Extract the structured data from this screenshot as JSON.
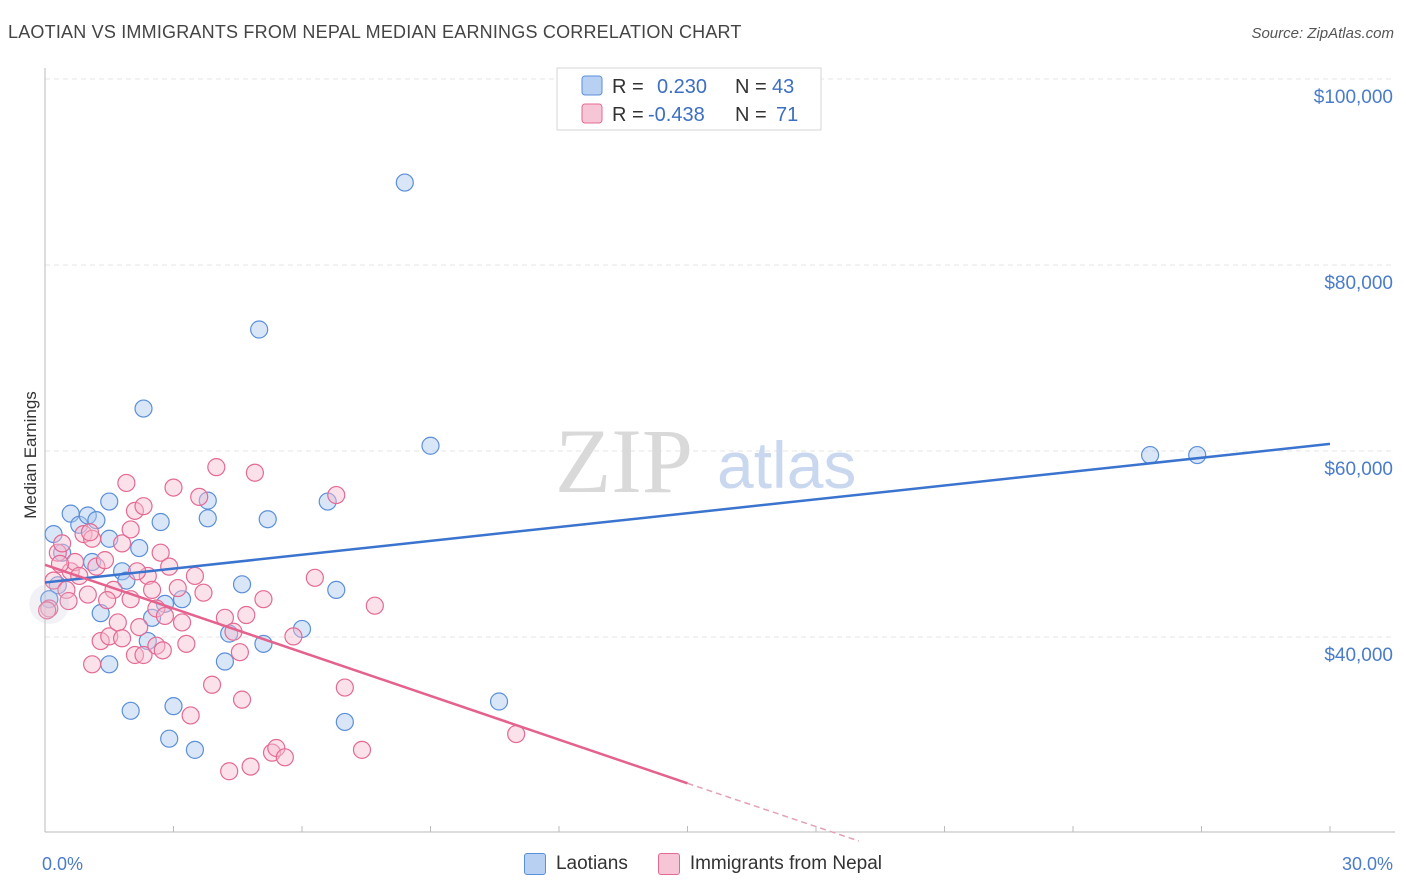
{
  "title": "LAOTIAN VS IMMIGRANTS FROM NEPAL MEDIAN EARNINGS CORRELATION CHART",
  "source": "Source: ZipAtlas.com",
  "watermark": {
    "zip": "ZIP",
    "atlas": "atlas"
  },
  "colors": {
    "blue": "#5b8fd9",
    "blue_fill": "#aac8f0",
    "pink": "#e46a93",
    "pink_fill": "#f6bcd0",
    "tick_text": "#4a7cc9"
  },
  "legend": {
    "rows": [
      {
        "r_label": "R = ",
        "r_value": "0.230",
        "n_label": "N = ",
        "n_value": "43"
      },
      {
        "r_label": "R = ",
        "r_value": "-0.438",
        "n_label": "N = ",
        "n_value": "71"
      }
    ]
  },
  "chart_data": {
    "type": "scatter",
    "title": "LAOTIAN VS IMMIGRANTS FROM NEPAL MEDIAN EARNINGS CORRELATION CHART",
    "xlabel": "",
    "ylabel": "Median Earnings",
    "xlim": [
      0,
      30
    ],
    "ylim": [
      20000,
      103000
    ],
    "x_tick_labels": [
      "0.0%",
      "30.0%"
    ],
    "y_ticks": [
      {
        "value": 40000,
        "label": "$40,000"
      },
      {
        "value": 60000,
        "label": "$60,000"
      },
      {
        "value": 80000,
        "label": "$80,000"
      },
      {
        "value": 100000,
        "label": "$100,000"
      }
    ],
    "grid": true,
    "legend_position": "top-center",
    "series": [
      {
        "name": "Laotians",
        "color": "#5b8fd9",
        "r": 0.23,
        "n": 43,
        "trend": {
          "x": [
            0,
            30
          ],
          "y": [
            47800,
            62700
          ]
        },
        "points": [
          [
            0.3,
            47500
          ],
          [
            0.4,
            51000
          ],
          [
            0.6,
            55200
          ],
          [
            0.8,
            54000
          ],
          [
            1.0,
            55000
          ],
          [
            1.1,
            50000
          ],
          [
            1.2,
            54500
          ],
          [
            1.3,
            44500
          ],
          [
            1.5,
            39000
          ],
          [
            1.5,
            52500
          ],
          [
            1.5,
            56500
          ],
          [
            1.8,
            49000
          ],
          [
            1.9,
            48000
          ],
          [
            2.0,
            34000
          ],
          [
            2.2,
            51500
          ],
          [
            2.3,
            66500
          ],
          [
            2.4,
            41500
          ],
          [
            2.5,
            44000
          ],
          [
            2.7,
            54300
          ],
          [
            2.8,
            45500
          ],
          [
            2.9,
            31000
          ],
          [
            3.0,
            34500
          ],
          [
            3.2,
            46000
          ],
          [
            3.5,
            29800
          ],
          [
            3.8,
            56600
          ],
          [
            3.8,
            54700
          ],
          [
            4.2,
            39300
          ],
          [
            4.3,
            42300
          ],
          [
            4.6,
            47600
          ],
          [
            5.0,
            75000
          ],
          [
            5.1,
            41200
          ],
          [
            5.2,
            54600
          ],
          [
            6.0,
            42800
          ],
          [
            6.6,
            56500
          ],
          [
            6.8,
            47000
          ],
          [
            7.0,
            32800
          ],
          [
            8.4,
            90800
          ],
          [
            9.0,
            62500
          ],
          [
            10.6,
            35000
          ],
          [
            25.8,
            61500
          ],
          [
            26.9,
            61500
          ],
          [
            0.1,
            46000
          ],
          [
            0.2,
            53000
          ]
        ]
      },
      {
        "name": "Immigrants from Nepal",
        "color": "#e46a93",
        "r": -0.438,
        "n": 71,
        "trend": {
          "x": [
            0,
            15
          ],
          "y": [
            49700,
            26200
          ]
        },
        "trend_dashed": {
          "x": [
            15,
            19
          ],
          "y": [
            26200,
            20000
          ]
        },
        "points": [
          [
            0.1,
            45000
          ],
          [
            0.2,
            48000
          ],
          [
            0.3,
            51000
          ],
          [
            0.4,
            52000
          ],
          [
            0.5,
            47000
          ],
          [
            0.6,
            49000
          ],
          [
            0.7,
            50000
          ],
          [
            0.8,
            48500
          ],
          [
            0.9,
            53000
          ],
          [
            1.0,
            46500
          ],
          [
            1.1,
            39000
          ],
          [
            1.1,
            52500
          ],
          [
            1.2,
            49500
          ],
          [
            1.3,
            41500
          ],
          [
            1.4,
            50200
          ],
          [
            1.5,
            42000
          ],
          [
            1.6,
            47000
          ],
          [
            1.7,
            43500
          ],
          [
            1.8,
            41800
          ],
          [
            1.8,
            52000
          ],
          [
            1.9,
            58500
          ],
          [
            2.0,
            53500
          ],
          [
            2.0,
            46000
          ],
          [
            2.1,
            40000
          ],
          [
            2.1,
            55500
          ],
          [
            2.2,
            43000
          ],
          [
            2.3,
            40000
          ],
          [
            2.3,
            56000
          ],
          [
            2.4,
            48500
          ],
          [
            2.5,
            47000
          ],
          [
            2.6,
            45000
          ],
          [
            2.6,
            41000
          ],
          [
            2.7,
            51000
          ],
          [
            2.8,
            44200
          ],
          [
            2.9,
            49500
          ],
          [
            3.0,
            58000
          ],
          [
            3.1,
            47200
          ],
          [
            3.2,
            43500
          ],
          [
            3.3,
            41200
          ],
          [
            3.4,
            33500
          ],
          [
            3.5,
            48500
          ],
          [
            3.6,
            57000
          ],
          [
            3.9,
            36800
          ],
          [
            4.0,
            60200
          ],
          [
            4.2,
            44000
          ],
          [
            4.3,
            27500
          ],
          [
            4.4,
            42500
          ],
          [
            4.6,
            35200
          ],
          [
            4.7,
            44300
          ],
          [
            4.8,
            28000
          ],
          [
            4.9,
            59600
          ],
          [
            5.1,
            46000
          ],
          [
            5.3,
            29500
          ],
          [
            5.4,
            30000
          ],
          [
            5.6,
            29000
          ],
          [
            5.8,
            42000
          ],
          [
            6.3,
            48300
          ],
          [
            6.8,
            57200
          ],
          [
            7.0,
            36500
          ],
          [
            7.4,
            29800
          ],
          [
            7.7,
            45300
          ],
          [
            11.0,
            31500
          ],
          [
            0.05,
            44800
          ],
          [
            0.35,
            49800
          ],
          [
            0.55,
            45800
          ],
          [
            1.05,
            53200
          ],
          [
            1.45,
            45900
          ],
          [
            2.15,
            49000
          ],
          [
            2.75,
            40500
          ],
          [
            3.7,
            46700
          ],
          [
            4.55,
            40300
          ]
        ]
      }
    ]
  }
}
